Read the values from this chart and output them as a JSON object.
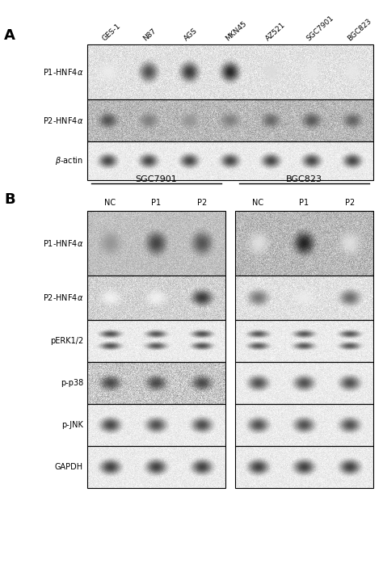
{
  "fig_width": 4.74,
  "fig_height": 7.03,
  "dpi": 100,
  "background": "#ffffff",
  "panel_A": {
    "label": "A",
    "col_labels": [
      "GES-1",
      "N87",
      "AGS",
      "MKN45",
      "AZ521",
      "SGC7901",
      "BGC823"
    ],
    "row_labels": [
      "P1-HNF4α",
      "P2-HNF4α",
      "β-actin"
    ],
    "band_intensities": {
      "P1-HNF4a": [
        0.08,
        0.78,
        0.88,
        0.97,
        0.15,
        0.1,
        0.1
      ],
      "P2-HNF4a": [
        0.75,
        0.55,
        0.45,
        0.55,
        0.65,
        0.72,
        0.68
      ],
      "b-actin": [
        0.82,
        0.82,
        0.82,
        0.82,
        0.82,
        0.82,
        0.82
      ]
    },
    "bg_grays": {
      "P1-HNF4a": 0.88,
      "P2-HNF4a": 0.72,
      "b-actin": 0.92
    },
    "noise_levels": {
      "P1-HNF4a": 0.04,
      "P2-HNF4a": 0.06,
      "b-actin": 0.025
    }
  },
  "panel_B": {
    "label": "B",
    "groups": [
      "SGC7901",
      "BGC823"
    ],
    "sub_labels": [
      "NC",
      "P1",
      "P2"
    ],
    "row_labels": [
      "P1-HNF4α",
      "P2-HNF4α",
      "pERK1/2",
      "p-p38",
      "p-JNK",
      "GAPDH"
    ],
    "band_data": {
      "SGC7901": {
        "P1-HNF4a": [
          0.45,
          0.82,
          0.75
        ],
        "P2-HNF4a": [
          0.05,
          0.05,
          0.88
        ],
        "pERK1/2": [
          0.78,
          0.75,
          0.78
        ],
        "p-p38": [
          0.8,
          0.8,
          0.8
        ],
        "p-JNK": [
          0.82,
          0.78,
          0.8
        ],
        "GAPDH": [
          0.85,
          0.85,
          0.85
        ]
      },
      "BGC823": {
        "P1-HNF4a": [
          0.12,
          0.97,
          0.12
        ],
        "P2-HNF4a": [
          0.6,
          0.08,
          0.65
        ],
        "pERK1/2": [
          0.75,
          0.75,
          0.75
        ],
        "p-p38": [
          0.78,
          0.78,
          0.78
        ],
        "p-JNK": [
          0.78,
          0.78,
          0.78
        ],
        "GAPDH": [
          0.85,
          0.85,
          0.85
        ]
      }
    },
    "bg_grays": {
      "SGC7901": {
        "P1-HNF4a": 0.75,
        "P2-HNF4a": 0.82,
        "pERK1/2": 0.92,
        "p-p38": 0.78,
        "p-JNK": 0.92,
        "GAPDH": 0.92
      },
      "BGC823": {
        "P1-HNF4a": 0.72,
        "P2-HNF4a": 0.88,
        "pERK1/2": 0.92,
        "p-p38": 0.92,
        "p-JNK": 0.92,
        "GAPDH": 0.92
      }
    },
    "noise_levels": {
      "SGC7901": {
        "P1-HNF4a": 0.04,
        "P2-HNF4a": 0.05,
        "pERK1/2": 0.025,
        "p-p38": 0.07,
        "p-JNK": 0.025,
        "GAPDH": 0.025
      },
      "BGC823": {
        "P1-HNF4a": 0.06,
        "P2-HNF4a": 0.04,
        "pERK1/2": 0.025,
        "p-p38": 0.025,
        "p-JNK": 0.025,
        "GAPDH": 0.025
      }
    }
  }
}
